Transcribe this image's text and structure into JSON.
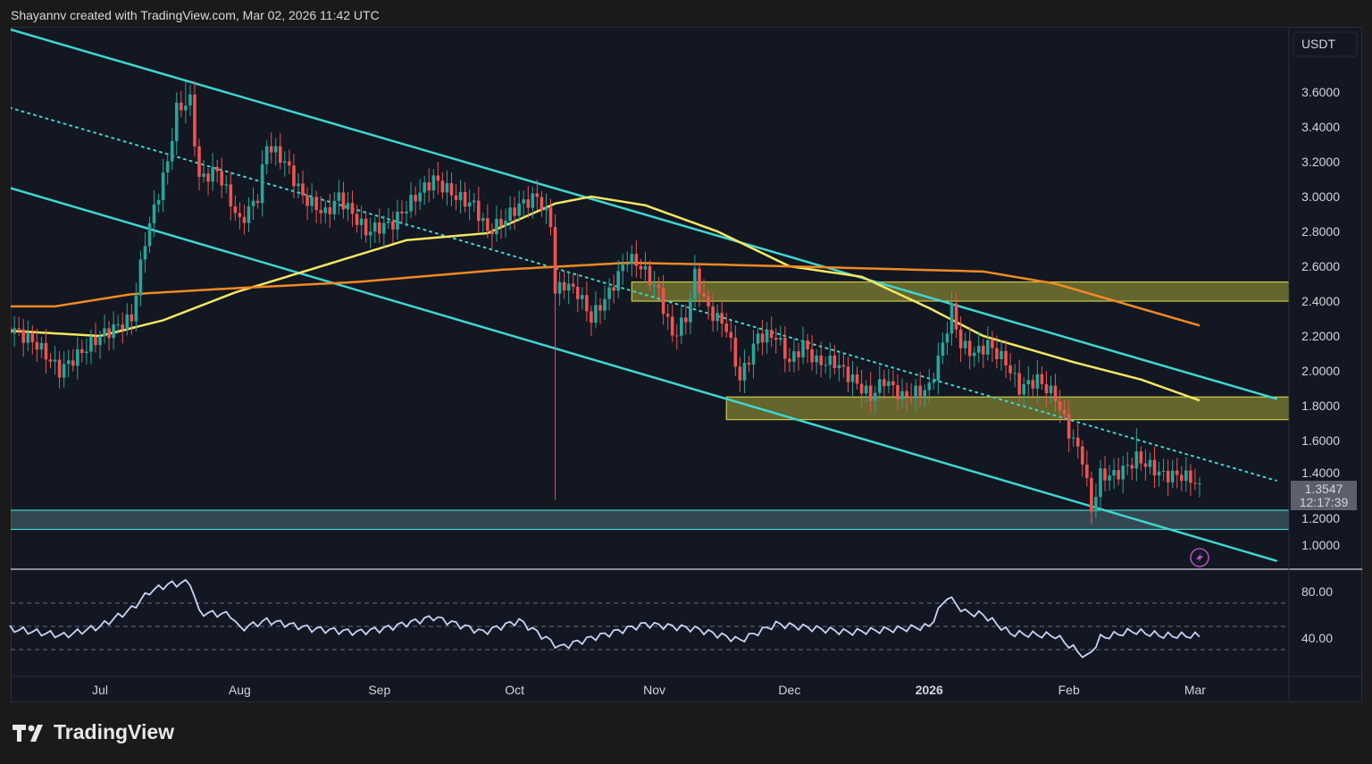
{
  "header": {
    "attribution": "Shayannv created with TradingView.com, Mar 02, 2026 11:42 UTC"
  },
  "footer": {
    "logo_text": "TradingView"
  },
  "colors": {
    "background": "#131722",
    "up": "#26a69a",
    "down": "#ef5350",
    "ma_fast": "#f5e663",
    "ma_slow": "#f08a24",
    "channel": "#3fd6d0",
    "zone_yellow": "#8a8a2a",
    "zone_cyan": "#3c5a66",
    "rsi": "#c9d3f5"
  },
  "chart_data": {
    "type": "candlestick",
    "currency": "USDT",
    "last_price": "1.3547",
    "countdown": "12:17:39",
    "price_ticks": [
      "1.0000",
      "1.2000",
      "1.4000",
      "1.6000",
      "1.8000",
      "2.0000",
      "2.2000",
      "2.4000",
      "2.6000",
      "2.8000",
      "3.0000",
      "3.2000",
      "3.4000",
      "3.6000"
    ],
    "time_ticks": [
      {
        "label": "Jul",
        "date": "2025-07-01"
      },
      {
        "label": "Aug",
        "date": "2025-08-01"
      },
      {
        "label": "Sep",
        "date": "2025-09-01"
      },
      {
        "label": "Oct",
        "date": "2025-10-01"
      },
      {
        "label": "Nov",
        "date": "2025-11-01"
      },
      {
        "label": "Dec",
        "date": "2025-12-01"
      },
      {
        "label": "2026",
        "date": "2026-01-01",
        "bold": true
      },
      {
        "label": "Feb",
        "date": "2026-02-01"
      },
      {
        "label": "Mar",
        "date": "2026-03-01"
      }
    ],
    "close_keypoints": [
      [
        "2025-06-11",
        2.25
      ],
      [
        "2025-06-17",
        2.15
      ],
      [
        "2025-06-22",
        2.0
      ],
      [
        "2025-07-01",
        2.2
      ],
      [
        "2025-07-08",
        2.3
      ],
      [
        "2025-07-11",
        2.75
      ],
      [
        "2025-07-16",
        3.2
      ],
      [
        "2025-07-18",
        3.5
      ],
      [
        "2025-07-21",
        3.55
      ],
      [
        "2025-07-23",
        3.1
      ],
      [
        "2025-07-27",
        3.15
      ],
      [
        "2025-08-01",
        2.85
      ],
      [
        "2025-08-05",
        3.0
      ],
      [
        "2025-08-07",
        3.3
      ],
      [
        "2025-08-11",
        3.2
      ],
      [
        "2025-08-15",
        3.0
      ],
      [
        "2025-08-20",
        2.9
      ],
      [
        "2025-08-23",
        3.0
      ],
      [
        "2025-08-29",
        2.8
      ],
      [
        "2025-09-04",
        2.85
      ],
      [
        "2025-09-09",
        3.0
      ],
      [
        "2025-09-13",
        3.1
      ],
      [
        "2025-09-18",
        3.0
      ],
      [
        "2025-09-22",
        2.95
      ],
      [
        "2025-09-25",
        2.8
      ],
      [
        "2025-09-28",
        2.85
      ],
      [
        "2025-10-02",
        2.95
      ],
      [
        "2025-10-06",
        3.0
      ],
      [
        "2025-10-09",
        2.85
      ],
      [
        "2025-10-10",
        2.45
      ],
      [
        "2025-10-12",
        2.5
      ],
      [
        "2025-10-15",
        2.45
      ],
      [
        "2025-10-18",
        2.3
      ],
      [
        "2025-10-22",
        2.45
      ],
      [
        "2025-10-26",
        2.65
      ],
      [
        "2025-10-29",
        2.6
      ],
      [
        "2025-11-02",
        2.45
      ],
      [
        "2025-11-05",
        2.2
      ],
      [
        "2025-11-08",
        2.3
      ],
      [
        "2025-11-10",
        2.55
      ],
      [
        "2025-11-13",
        2.35
      ],
      [
        "2025-11-17",
        2.25
      ],
      [
        "2025-11-20",
        1.95
      ],
      [
        "2025-11-24",
        2.2
      ],
      [
        "2025-11-28",
        2.2
      ],
      [
        "2025-12-01",
        2.05
      ],
      [
        "2025-12-04",
        2.15
      ],
      [
        "2025-12-07",
        2.05
      ],
      [
        "2025-12-11",
        2.05
      ],
      [
        "2025-12-15",
        1.95
      ],
      [
        "2025-12-19",
        1.85
      ],
      [
        "2025-12-22",
        1.95
      ],
      [
        "2025-12-26",
        1.85
      ],
      [
        "2026-01-01",
        1.9
      ],
      [
        "2026-01-04",
        2.15
      ],
      [
        "2026-01-06",
        2.35
      ],
      [
        "2026-01-08",
        2.15
      ],
      [
        "2026-01-11",
        2.1
      ],
      [
        "2026-01-14",
        2.15
      ],
      [
        "2026-01-18",
        2.05
      ],
      [
        "2026-01-21",
        1.9
      ],
      [
        "2026-01-25",
        1.95
      ],
      [
        "2026-01-29",
        1.85
      ],
      [
        "2026-02-01",
        1.65
      ],
      [
        "2026-02-04",
        1.5
      ],
      [
        "2026-02-06",
        1.2
      ],
      [
        "2026-02-08",
        1.4
      ],
      [
        "2026-02-11",
        1.4
      ],
      [
        "2026-02-14",
        1.45
      ],
      [
        "2026-02-16",
        1.5
      ],
      [
        "2026-02-19",
        1.45
      ],
      [
        "2026-02-22",
        1.4
      ],
      [
        "2026-02-26",
        1.4
      ],
      [
        "2026-03-02",
        1.3547
      ]
    ],
    "notable_lows": [
      [
        "2025-10-10",
        1.26
      ],
      [
        "2026-02-06",
        1.12
      ]
    ],
    "notable_highs": [
      [
        "2025-07-20",
        3.66
      ],
      [
        "2026-02-16",
        1.67
      ]
    ],
    "ma_fast": [
      [
        "2025-06-11",
        2.23
      ],
      [
        "2025-07-01",
        2.2
      ],
      [
        "2025-07-15",
        2.29
      ],
      [
        "2025-07-31",
        2.45
      ],
      [
        "2025-08-14",
        2.56
      ],
      [
        "2025-09-07",
        2.75
      ],
      [
        "2025-09-25",
        2.79
      ],
      [
        "2025-10-10",
        2.96
      ],
      [
        "2025-10-18",
        3.0
      ],
      [
        "2025-10-30",
        2.95
      ],
      [
        "2025-11-15",
        2.8
      ],
      [
        "2025-12-01",
        2.6
      ],
      [
        "2025-12-17",
        2.54
      ],
      [
        "2026-01-01",
        2.36
      ],
      [
        "2026-01-13",
        2.2
      ],
      [
        "2026-02-02",
        2.05
      ],
      [
        "2026-02-17",
        1.95
      ],
      [
        "2026-03-02",
        1.83
      ]
    ],
    "ma_slow": [
      [
        "2025-06-11",
        2.37
      ],
      [
        "2025-06-21",
        2.37
      ],
      [
        "2025-07-08",
        2.44
      ],
      [
        "2025-07-28",
        2.47
      ],
      [
        "2025-08-27",
        2.51
      ],
      [
        "2025-09-28",
        2.58
      ],
      [
        "2025-10-26",
        2.62
      ],
      [
        "2025-11-15",
        2.61
      ],
      [
        "2025-12-15",
        2.59
      ],
      [
        "2026-01-13",
        2.57
      ],
      [
        "2026-01-29",
        2.5
      ],
      [
        "2026-02-14",
        2.38
      ],
      [
        "2026-03-02",
        2.26
      ]
    ],
    "trendlines": [
      {
        "style": "solid",
        "from": [
          "2025-06-11",
          3.96
        ],
        "to": [
          "2026-03-19",
          1.84
        ]
      },
      {
        "style": "dotted",
        "from": [
          "2025-06-11",
          3.51
        ],
        "to": [
          "2026-03-19",
          1.37
        ]
      },
      {
        "style": "solid",
        "from": [
          "2025-06-11",
          3.05
        ],
        "to": [
          "2026-03-19",
          0.91
        ]
      }
    ],
    "zones": [
      {
        "color": "yellow",
        "from": "2025-10-27",
        "low": 2.4,
        "high": 2.51
      },
      {
        "color": "yellow",
        "from": "2025-11-17",
        "low": 1.72,
        "high": 1.85
      },
      {
        "color": "cyan",
        "from": "2025-06-11",
        "low": 1.09,
        "high": 1.2
      }
    ],
    "rsi": {
      "ticks": [
        "40.00",
        "80.00"
      ],
      "bands": [
        70,
        50,
        30
      ],
      "keypoints": [
        [
          "2025-06-11",
          48
        ],
        [
          "2025-06-23",
          42
        ],
        [
          "2025-07-01",
          50
        ],
        [
          "2025-07-08",
          65
        ],
        [
          "2025-07-12",
          80
        ],
        [
          "2025-07-16",
          86
        ],
        [
          "2025-07-21",
          88
        ],
        [
          "2025-07-23",
          62
        ],
        [
          "2025-07-30",
          60
        ],
        [
          "2025-08-01",
          48
        ],
        [
          "2025-08-07",
          55
        ],
        [
          "2025-08-17",
          48
        ],
        [
          "2025-08-27",
          45
        ],
        [
          "2025-09-02",
          48
        ],
        [
          "2025-09-13",
          58
        ],
        [
          "2025-09-24",
          45
        ],
        [
          "2025-10-02",
          55
        ],
        [
          "2025-10-11",
          32
        ],
        [
          "2025-10-18",
          40
        ],
        [
          "2025-10-30",
          52
        ],
        [
          "2025-11-10",
          48
        ],
        [
          "2025-11-20",
          38
        ],
        [
          "2025-11-28",
          52
        ],
        [
          "2025-12-14",
          45
        ],
        [
          "2025-12-26",
          48
        ],
        [
          "2026-01-01",
          50
        ],
        [
          "2026-01-05",
          76
        ],
        [
          "2026-01-09",
          62
        ],
        [
          "2026-01-13",
          60
        ],
        [
          "2026-01-19",
          44
        ],
        [
          "2026-01-29",
          42
        ],
        [
          "2026-02-05",
          23
        ],
        [
          "2026-02-08",
          40
        ],
        [
          "2026-02-15",
          46
        ],
        [
          "2026-02-22",
          42
        ],
        [
          "2026-03-02",
          42
        ]
      ]
    }
  }
}
